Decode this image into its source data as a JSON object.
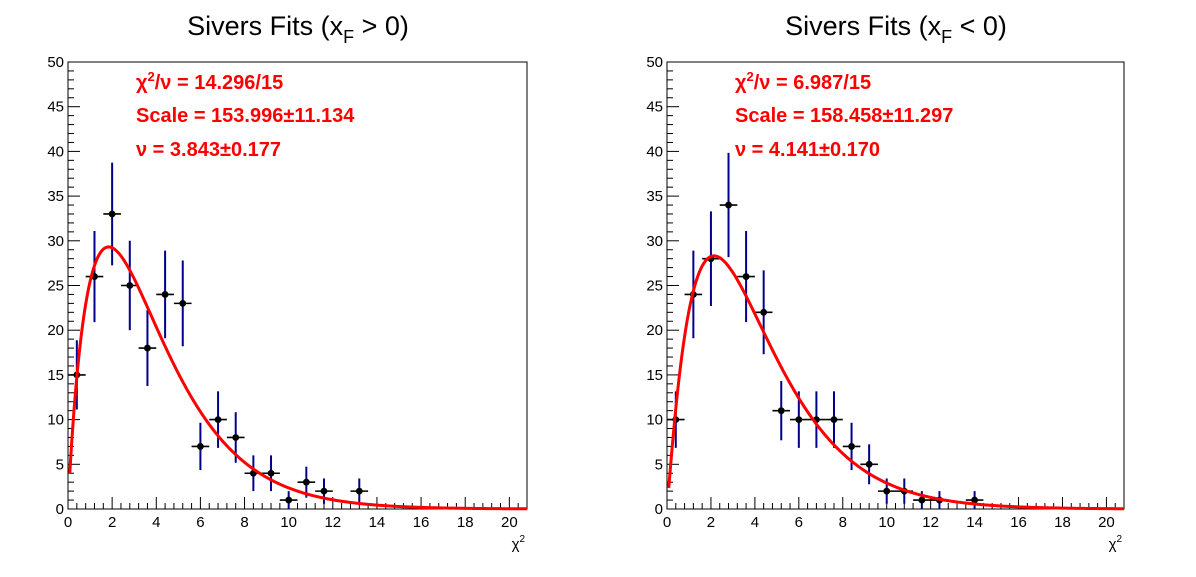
{
  "chart_data": [
    {
      "type": "scatter",
      "title": {
        "main": "Sivers Fits (x",
        "sub": "F",
        "tail": " > 0)"
      },
      "xlabel": {
        "base": "χ",
        "sup": "2"
      },
      "ylabel": "",
      "xlim": [
        0,
        20.8
      ],
      "ylim": [
        0,
        50
      ],
      "xticks": [
        0,
        2,
        4,
        6,
        8,
        10,
        12,
        14,
        16,
        18,
        20
      ],
      "yticks": [
        0,
        5,
        10,
        15,
        20,
        25,
        30,
        35,
        40,
        45,
        50
      ],
      "bin_width": 0.8,
      "grid": false,
      "points": [
        {
          "x": 0.4,
          "y": 15
        },
        {
          "x": 1.2,
          "y": 26
        },
        {
          "x": 2.0,
          "y": 33
        },
        {
          "x": 2.8,
          "y": 25
        },
        {
          "x": 3.6,
          "y": 18
        },
        {
          "x": 4.4,
          "y": 24
        },
        {
          "x": 5.2,
          "y": 23
        },
        {
          "x": 6.0,
          "y": 7
        },
        {
          "x": 6.8,
          "y": 10
        },
        {
          "x": 7.6,
          "y": 8
        },
        {
          "x": 8.4,
          "y": 4
        },
        {
          "x": 9.2,
          "y": 4
        },
        {
          "x": 10.0,
          "y": 1
        },
        {
          "x": 10.8,
          "y": 3
        },
        {
          "x": 11.6,
          "y": 2
        },
        {
          "x": 13.2,
          "y": 2
        }
      ],
      "fit": {
        "nu": 3.843,
        "scale": 153.996,
        "color": "#ff0000"
      },
      "stats": [
        {
          "base": "χ",
          "sup": "2",
          "rest": "/ν = 14.296/15"
        },
        {
          "base": "Scale = 153.996±11.134",
          "sup": "",
          "rest": ""
        },
        {
          "base": "ν = 3.843±0.177",
          "sup": "",
          "rest": ""
        }
      ],
      "errorbar_color": "#00008b"
    },
    {
      "type": "scatter",
      "title": {
        "main": "Sivers Fits (x",
        "sub": "F",
        "tail": " < 0)"
      },
      "xlabel": {
        "base": "χ",
        "sup": "2"
      },
      "ylabel": "",
      "xlim": [
        0,
        20.8
      ],
      "ylim": [
        0,
        50
      ],
      "xticks": [
        0,
        2,
        4,
        6,
        8,
        10,
        12,
        14,
        16,
        18,
        20
      ],
      "yticks": [
        0,
        5,
        10,
        15,
        20,
        25,
        30,
        35,
        40,
        45,
        50
      ],
      "bin_width": 0.8,
      "grid": false,
      "points": [
        {
          "x": 0.4,
          "y": 10
        },
        {
          "x": 1.2,
          "y": 24
        },
        {
          "x": 2.0,
          "y": 28
        },
        {
          "x": 2.8,
          "y": 34
        },
        {
          "x": 3.6,
          "y": 26
        },
        {
          "x": 4.4,
          "y": 22
        },
        {
          "x": 5.2,
          "y": 11
        },
        {
          "x": 6.0,
          "y": 10
        },
        {
          "x": 6.8,
          "y": 10
        },
        {
          "x": 7.6,
          "y": 10
        },
        {
          "x": 8.4,
          "y": 7
        },
        {
          "x": 9.2,
          "y": 5
        },
        {
          "x": 10.0,
          "y": 2
        },
        {
          "x": 10.8,
          "y": 2
        },
        {
          "x": 11.6,
          "y": 1
        },
        {
          "x": 12.4,
          "y": 1
        },
        {
          "x": 14.0,
          "y": 1
        }
      ],
      "fit": {
        "nu": 4.141,
        "scale": 158.458,
        "color": "#ff0000"
      },
      "stats": [
        {
          "base": "χ",
          "sup": "2",
          "rest": "/ν = 6.987/15"
        },
        {
          "base": "Scale = 158.458±11.297",
          "sup": "",
          "rest": ""
        },
        {
          "base": "ν = 4.141±0.170",
          "sup": "",
          "rest": ""
        }
      ],
      "errorbar_color": "#00008b"
    }
  ]
}
